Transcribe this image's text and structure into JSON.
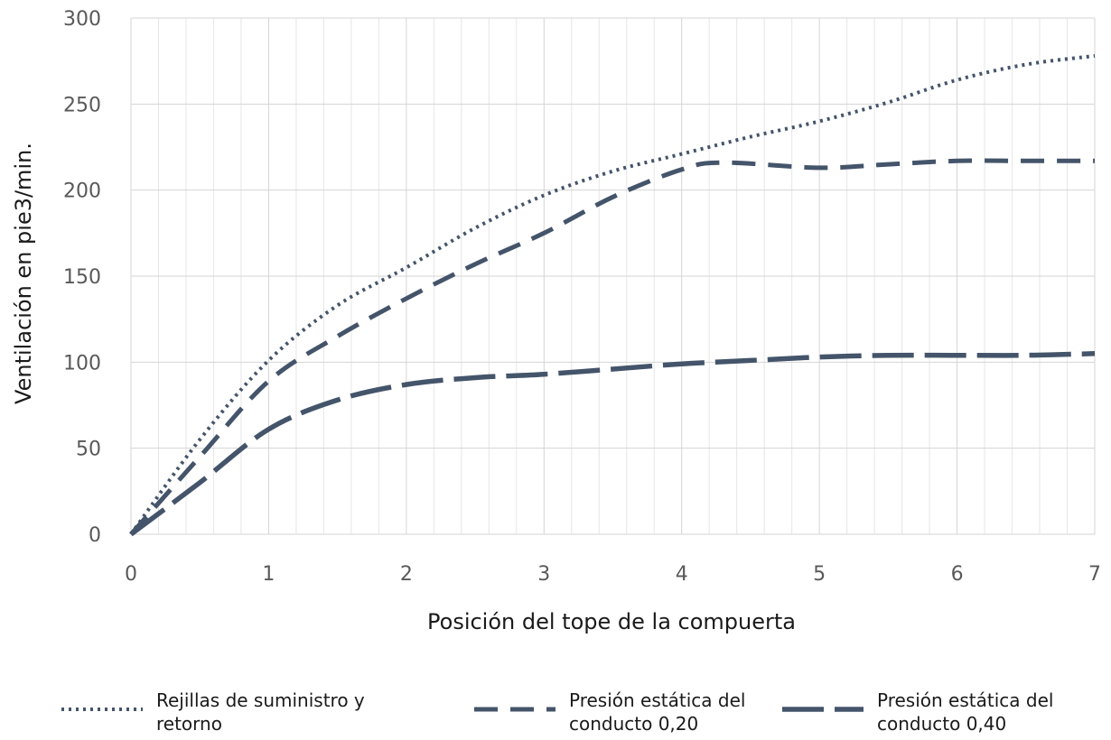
{
  "chart_data": {
    "type": "line",
    "xlabel": "Posición del tope de la compuerta",
    "ylabel": "Ventilación en pie3/min.",
    "xlim": [
      0,
      7
    ],
    "ylim": [
      0,
      300
    ],
    "x_ticks": [
      0,
      1,
      2,
      3,
      4,
      5,
      6,
      7
    ],
    "y_ticks": [
      0,
      50,
      100,
      150,
      200,
      250,
      300
    ],
    "x_minor_step": 0.2,
    "grid": true,
    "legend_position": "bottom",
    "series": [
      {
        "name": "Rejillas de suministro y retorno",
        "name_lines": [
          "Rejillas de suministro y",
          "retorno"
        ],
        "style": "dotted",
        "color": "#44546a",
        "x": [
          0,
          0.5,
          1,
          1.5,
          2,
          2.5,
          3,
          3.5,
          4,
          4.5,
          5,
          5.5,
          6,
          6.5,
          7
        ],
        "y": [
          0,
          55,
          101,
          133,
          155,
          178,
          197,
          211,
          221,
          231,
          240,
          251,
          264,
          273,
          278
        ]
      },
      {
        "name": "Presión estática del conducto 0,20",
        "name_lines": [
          "Presión estática del",
          "conducto 0,20"
        ],
        "style": "dashed",
        "color": "#44546a",
        "x": [
          0,
          0.5,
          1,
          1.5,
          2,
          2.5,
          3,
          3.5,
          4,
          4.3,
          5,
          5.5,
          6,
          6.5,
          7
        ],
        "y": [
          0,
          45,
          89,
          115,
          137,
          157,
          175,
          196,
          212,
          216,
          213,
          215,
          217,
          217,
          217
        ]
      },
      {
        "name": "Presión estática del conducto 0,40",
        "name_lines": [
          "Presión estática del",
          "conducto 0,40"
        ],
        "style": "long-dashed",
        "color": "#44546a",
        "x": [
          0,
          0.5,
          1,
          1.5,
          2,
          2.5,
          3,
          3.5,
          4,
          4.5,
          5,
          5.5,
          6,
          6.5,
          7
        ],
        "y": [
          0,
          30,
          61,
          78,
          87,
          91,
          93,
          96,
          99,
          101,
          103,
          104,
          104,
          104,
          105
        ]
      }
    ]
  }
}
